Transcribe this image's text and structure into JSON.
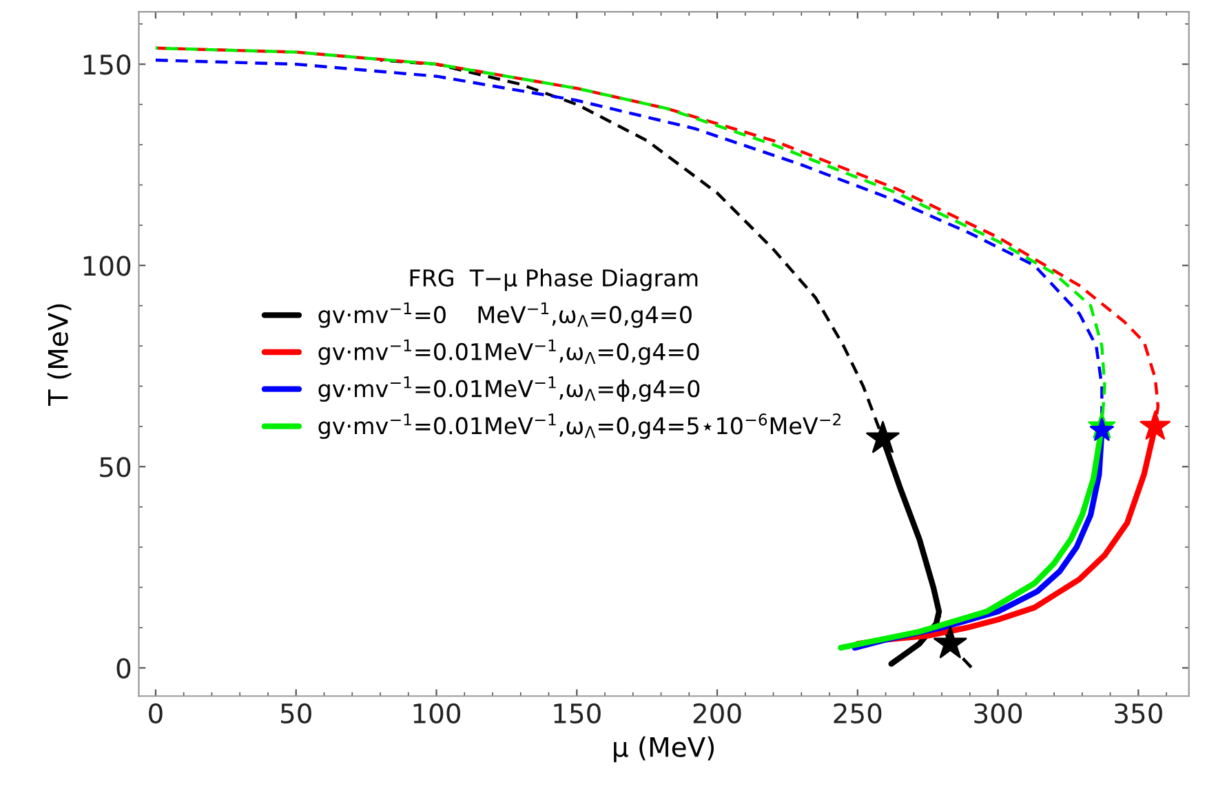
{
  "chart_data": {
    "type": "line",
    "xlabel": "μ (MeV)",
    "ylabel": "T (MeV)",
    "legend_title": "FRG  T−μ Phase Diagram",
    "xlim": [
      -6,
      368
    ],
    "ylim": [
      -7,
      163
    ],
    "xticks": [
      0,
      50,
      100,
      150,
      200,
      250,
      300,
      350
    ],
    "yticks": [
      0,
      50,
      100,
      150
    ],
    "grid": false,
    "legend": "center left",
    "series": [
      {
        "line_style": "dashed",
        "color": "#000000",
        "x": [
          80,
          100,
          130,
          150,
          175,
          200,
          220,
          235,
          245,
          252,
          259
        ],
        "values": [
          151,
          150,
          145,
          140,
          131,
          118,
          104,
          92,
          80,
          70,
          57
        ]
      },
      {
        "line_style": "dashed",
        "color": "#000000",
        "x": [
          279,
          283,
          288,
          292
        ],
        "values": [
          13,
          6,
          2,
          -1
        ]
      },
      {
        "line_style": "dashed",
        "color": "#ff0000",
        "x": [
          0,
          50,
          100,
          150,
          182,
          220,
          264,
          300,
          329,
          345,
          352,
          356,
          357,
          356
        ],
        "values": [
          154,
          153,
          150,
          144,
          139,
          131,
          119,
          107,
          95,
          86,
          81,
          72,
          65,
          60
        ]
      },
      {
        "line_style": "dashed",
        "color": "#0000ff",
        "x": [
          0,
          50,
          100,
          150,
          192,
          230,
          264,
          290,
          313,
          329,
          335,
          337,
          337
        ],
        "values": [
          151,
          150,
          147,
          141,
          134,
          125,
          116,
          108,
          100,
          88,
          80,
          70,
          59
        ]
      },
      {
        "line_style": "dashed",
        "color": "#00ee00",
        "x": [
          0,
          50,
          100,
          150,
          182,
          220,
          264,
          300,
          320,
          333,
          337,
          338,
          337
        ],
        "values": [
          154,
          153,
          150,
          144,
          139,
          130,
          118,
          106,
          98,
          90,
          80,
          70,
          60
        ]
      },
      {
        "line_style": "solid",
        "name": "gv·mv$^{−1}$=0    MeV$^{−1}$,ω$_{Λ}$=0,g4=0",
        "color": "#000000",
        "x": [
          259,
          265,
          272,
          277,
          279,
          278,
          272,
          266,
          262
        ],
        "values": [
          57,
          45,
          32,
          20,
          14,
          11,
          6,
          3,
          1
        ]
      },
      {
        "line_style": "solid",
        "name": "gv·mv$^{−1}$=0.01MeV$^{−1}$,ω$_{Λ}$=0,g4=0",
        "color": "#ff0000",
        "x": [
          356,
          352,
          346,
          338,
          329,
          313,
          300,
          289,
          275,
          260,
          250
        ],
        "values": [
          60,
          48,
          36,
          28,
          22,
          15,
          12,
          10,
          8,
          7,
          6
        ]
      },
      {
        "line_style": "solid",
        "name": "gv·mv$^{−1}$=0.01MeV$^{−1}$,ω$_{Λ}$=ϕ,g4=0",
        "color": "#0000ff",
        "x": [
          337,
          336,
          333,
          328,
          322,
          314,
          300,
          280,
          260,
          249
        ],
        "values": [
          59,
          48,
          38,
          30,
          24,
          19,
          14,
          10,
          7,
          5
        ]
      },
      {
        "line_style": "solid",
        "name": "gv·mv$^{−1}$=0.01MeV$^{−1}$,ω$_{Λ}$=0,g4=5⋆10$^{−6}$MeV$^{−2}$",
        "color": "#00ee00",
        "x": [
          337,
          334,
          330,
          326,
          320,
          313,
          296,
          272,
          244
        ],
        "values": [
          60,
          47,
          38,
          32,
          26,
          21,
          14,
          9,
          5
        ]
      },
      {
        "type": "scatter",
        "marker": "star",
        "color": "#000000",
        "x": [
          259,
          283
        ],
        "values": [
          57,
          6
        ]
      },
      {
        "type": "scatter",
        "marker": "star",
        "color": "#ff0000",
        "x": [
          356
        ],
        "values": [
          60
        ]
      },
      {
        "type": "scatter",
        "marker": "star",
        "color": "#00ee00",
        "x": [
          337
        ],
        "values": [
          60
        ]
      },
      {
        "type": "scatter",
        "marker": "star",
        "color": "#0000ff",
        "x": [
          337
        ],
        "values": [
          59
        ]
      }
    ]
  }
}
